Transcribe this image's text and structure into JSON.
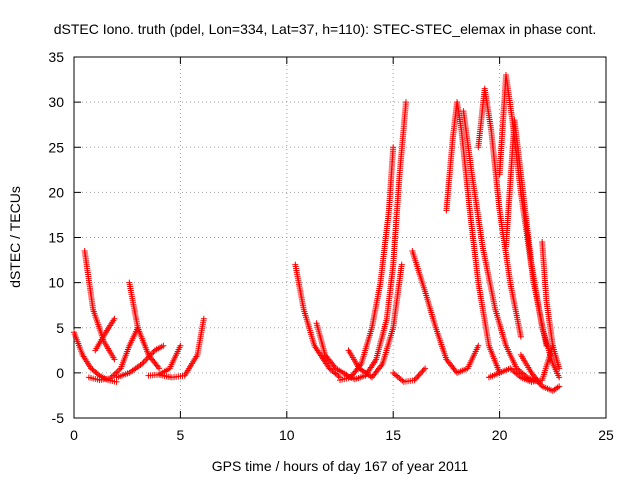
{
  "chart_data": {
    "type": "scatter",
    "title": "dSTEC Iono. truth (pdel, Lon=334, Lat=37, h=110): STEC-STEC_elemax in phase cont.",
    "xlabel": "GPS time / hours of day 167 of year 2011",
    "ylabel": "dSTEC  / TECUs",
    "xlim": [
      0,
      25
    ],
    "ylim": [
      -5,
      35
    ],
    "xticks": [
      0,
      5,
      10,
      15,
      20,
      25
    ],
    "yticks": [
      -5,
      0,
      5,
      10,
      15,
      20,
      25,
      30,
      35
    ],
    "xtick_labels": [
      "0",
      "5",
      "10",
      "15",
      "20",
      "25"
    ],
    "ytick_labels": [
      "-5",
      "0",
      "5",
      "10",
      "15",
      "20",
      "25",
      "30",
      "35"
    ],
    "grid": true,
    "marker": "+",
    "color": "#ff0000",
    "series": [
      {
        "x": [
          0.0,
          0.4,
          0.8,
          1.2,
          1.6,
          2.0
        ],
        "y": [
          4.5,
          2.0,
          0.5,
          -0.3,
          -0.8,
          -1.0
        ]
      },
      {
        "x": [
          0.5,
          0.9,
          1.4,
          1.9
        ],
        "y": [
          13.5,
          7.0,
          3.5,
          1.5
        ]
      },
      {
        "x": [
          0.7,
          1.2,
          1.7,
          2.2,
          2.6,
          3.0
        ],
        "y": [
          -0.5,
          -0.8,
          -0.6,
          0.5,
          3.0,
          5.0
        ]
      },
      {
        "x": [
          2.6,
          3.0,
          3.5,
          4.0
        ],
        "y": [
          10.0,
          5.0,
          2.0,
          0.5
        ]
      },
      {
        "x": [
          1.0,
          1.5,
          1.9
        ],
        "y": [
          2.5,
          4.5,
          6.0
        ]
      },
      {
        "x": [
          2.0,
          2.6,
          3.2,
          3.8,
          4.2
        ],
        "y": [
          -0.5,
          0.0,
          1.0,
          2.5,
          3.0
        ]
      },
      {
        "x": [
          3.5,
          4.0,
          4.5,
          5.0
        ],
        "y": [
          -0.3,
          -0.2,
          0.5,
          3.0
        ]
      },
      {
        "x": [
          4.0,
          4.6,
          5.2,
          5.8,
          6.1
        ],
        "y": [
          -0.2,
          -0.5,
          -0.3,
          2.0,
          6.0
        ]
      },
      {
        "x": [
          10.4,
          10.8,
          11.3,
          12.0,
          12.5
        ],
        "y": [
          12.0,
          7.0,
          3.0,
          0.5,
          -0.5
        ]
      },
      {
        "x": [
          11.4,
          11.8,
          12.3,
          12.8
        ],
        "y": [
          5.5,
          2.0,
          0.5,
          -0.2
        ]
      },
      {
        "x": [
          12.8,
          13.2,
          13.7,
          14.2,
          14.7,
          15.0,
          15.3,
          15.6
        ],
        "y": [
          -0.3,
          -0.7,
          -0.3,
          1.5,
          6.0,
          12.0,
          22.0,
          30.0
        ]
      },
      {
        "x": [
          12.5,
          13.0,
          13.5,
          14.0,
          14.4,
          14.8,
          15.0
        ],
        "y": [
          -0.8,
          -0.5,
          1.0,
          5.0,
          10.0,
          18.0,
          25.0
        ]
      },
      {
        "x": [
          12.9,
          13.4,
          14.0,
          14.5,
          15.0,
          15.4
        ],
        "y": [
          2.5,
          0.5,
          -0.5,
          1.0,
          5.0,
          12.0
        ]
      },
      {
        "x": [
          15.9,
          16.5,
          17.0,
          17.5,
          18.0,
          18.5,
          19.0
        ],
        "y": [
          13.5,
          9.0,
          5.0,
          1.5,
          0.0,
          0.5,
          3.0
        ]
      },
      {
        "x": [
          15.0,
          15.5,
          16.0,
          16.5
        ],
        "y": [
          0.0,
          -1.0,
          -0.8,
          0.5
        ]
      },
      {
        "x": [
          17.5,
          17.8,
          18.0,
          18.2,
          18.6,
          19.0,
          19.5,
          20.0
        ],
        "y": [
          18.0,
          26.0,
          30.0,
          27.0,
          18.0,
          10.0,
          3.0,
          0.0
        ]
      },
      {
        "x": [
          18.3,
          18.7,
          19.2,
          19.8,
          20.3,
          20.8,
          21.3,
          21.8
        ],
        "y": [
          29.0,
          22.0,
          14.0,
          7.0,
          3.0,
          0.5,
          -0.5,
          -1.0
        ]
      },
      {
        "x": [
          19.0,
          19.3,
          19.6,
          20.0,
          20.5,
          21.0
        ],
        "y": [
          25.0,
          31.5,
          27.0,
          18.0,
          10.0,
          4.0
        ]
      },
      {
        "x": [
          20.0,
          20.3,
          20.6,
          21.0,
          21.6,
          22.2
        ],
        "y": [
          22.0,
          33.0,
          28.0,
          20.0,
          10.0,
          3.0
        ]
      },
      {
        "x": [
          20.3,
          20.7,
          21.0,
          21.5,
          22.0,
          22.5,
          22.8
        ],
        "y": [
          14.0,
          28.0,
          22.0,
          12.0,
          5.0,
          1.0,
          -0.5
        ]
      },
      {
        "x": [
          21.0,
          21.5,
          22.0,
          22.5,
          22.8
        ],
        "y": [
          2.0,
          0.0,
          -1.5,
          -2.0,
          -1.5
        ]
      },
      {
        "x": [
          22.0,
          22.2,
          22.5,
          22.8
        ],
        "y": [
          14.5,
          8.0,
          3.0,
          0.5
        ]
      },
      {
        "x": [
          19.5,
          20.0,
          20.5,
          21.0,
          21.5,
          22.0,
          22.5
        ],
        "y": [
          -0.5,
          0.0,
          0.5,
          -0.5,
          -1.0,
          -0.8,
          3.0
        ]
      }
    ]
  }
}
